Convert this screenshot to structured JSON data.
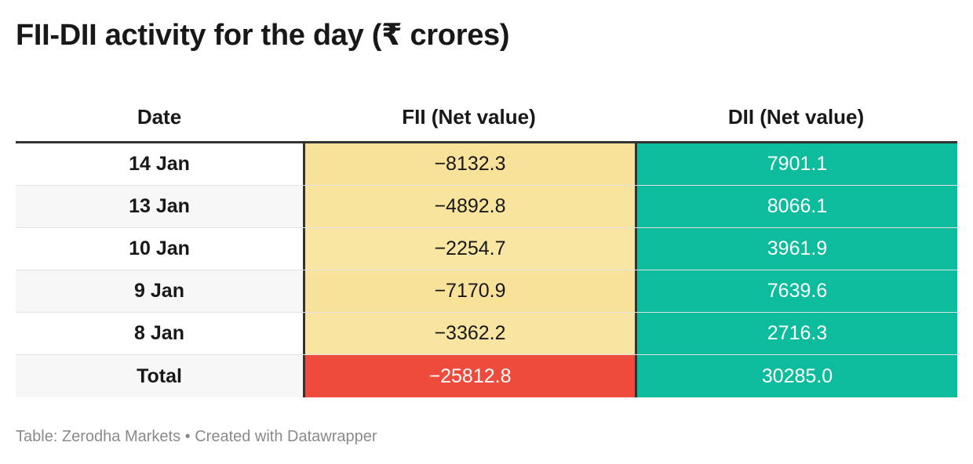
{
  "title": "FII-DII activity for the day (₹ crores)",
  "source": "Table: Zerodha Markets • Created with Datawrapper",
  "colors": {
    "fii_light": "#f8e4a0",
    "fii_total": "#ef4b3c",
    "dii": "#0dbc9c"
  },
  "chart_data": {
    "type": "table",
    "columns": [
      "Date",
      "FII (Net value)",
      "DII (Net value)"
    ],
    "rows": [
      {
        "date": "14 Jan",
        "fii": "−8132.3",
        "dii": "7901.1",
        "fii_value": -8132.3,
        "dii_value": 7901.1
      },
      {
        "date": "13 Jan",
        "fii": "−4892.8",
        "dii": "8066.1",
        "fii_value": -4892.8,
        "dii_value": 8066.1
      },
      {
        "date": "10 Jan",
        "fii": "−2254.7",
        "dii": "3961.9",
        "fii_value": -2254.7,
        "dii_value": 3961.9
      },
      {
        "date": "9 Jan",
        "fii": "−7170.9",
        "dii": "7639.6",
        "fii_value": -7170.9,
        "dii_value": 7639.6
      },
      {
        "date": "8 Jan",
        "fii": "−3362.2",
        "dii": "2716.3",
        "fii_value": -3362.2,
        "dii_value": 2716.3
      },
      {
        "date": "Total",
        "fii": "−25812.8",
        "dii": "30285.0",
        "fii_value": -25812.8,
        "dii_value": 30285.0
      }
    ]
  }
}
